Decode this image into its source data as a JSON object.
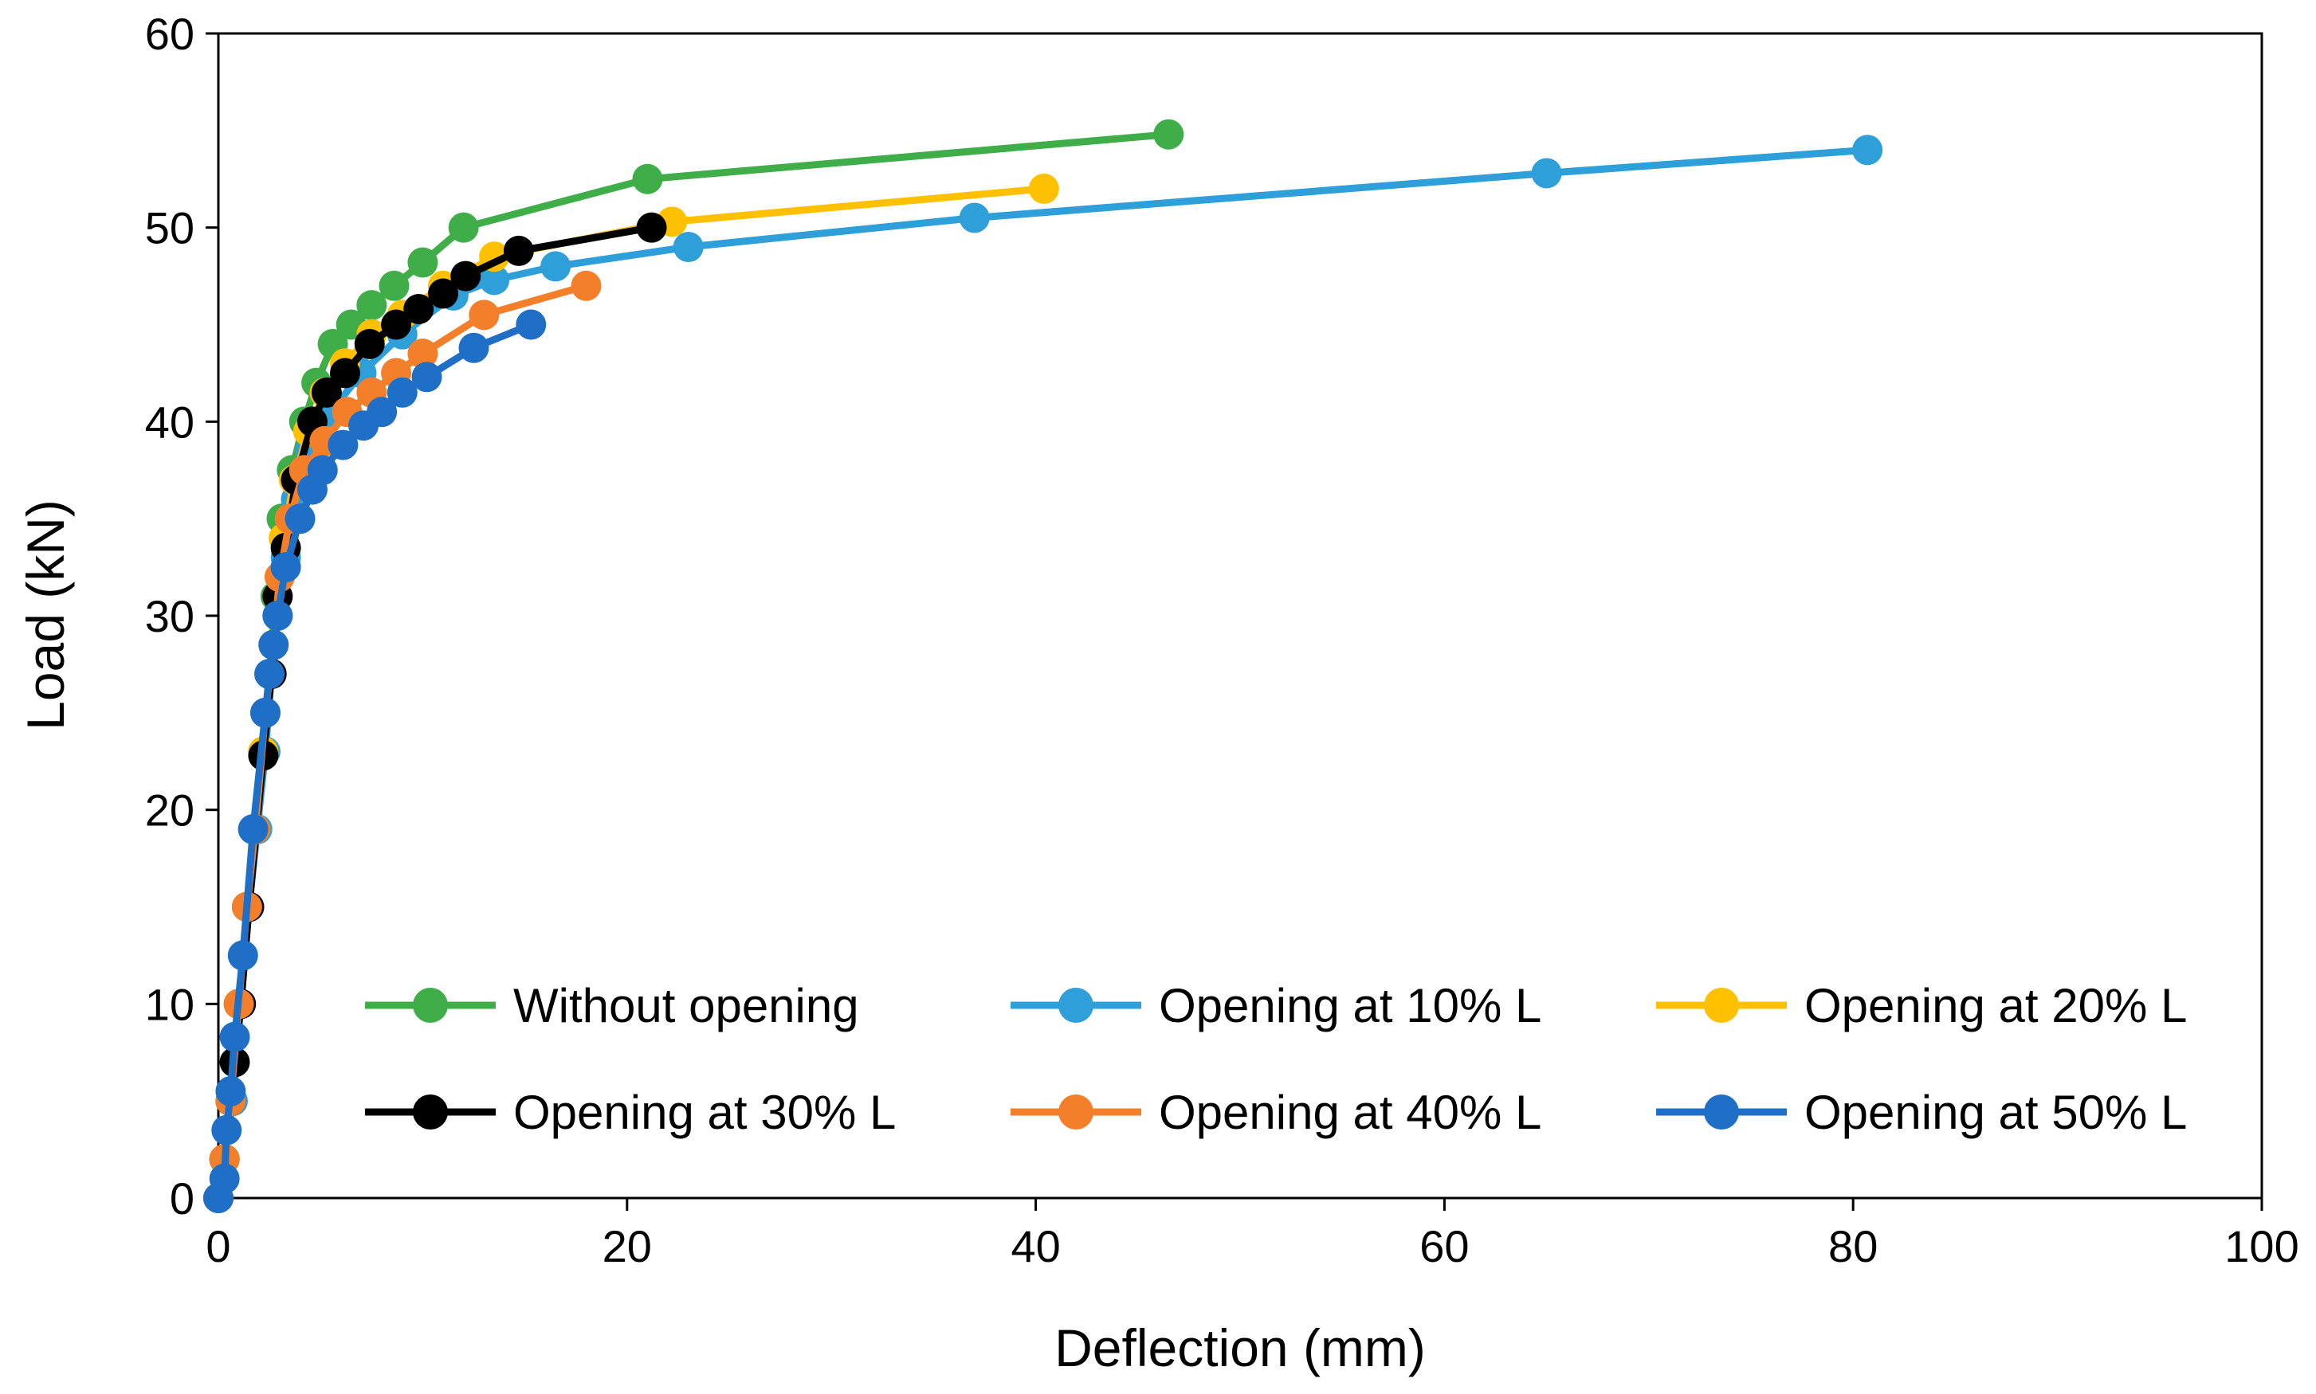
{
  "chart_data": {
    "type": "line",
    "title": "",
    "xlabel": "Deflection (mm)",
    "ylabel": "Load (kN)",
    "xlim": [
      0,
      100
    ],
    "ylim": [
      0,
      60
    ],
    "xticks": [
      0,
      20,
      40,
      60,
      80,
      100
    ],
    "yticks": [
      0,
      10,
      20,
      30,
      40,
      50,
      60
    ],
    "xtick_labels": [
      "0",
      "20",
      "40",
      "60",
      "80",
      "100"
    ],
    "ytick_labels": [
      "0",
      "10",
      "20",
      "30",
      "40",
      "50",
      "60"
    ],
    "grid": false,
    "legend_position": "bottom-right, 3 columns x 2 rows",
    "series": [
      {
        "name": "Without opening",
        "color": "#3fae49",
        "points": [
          [
            0,
            0
          ],
          [
            0.3,
            2
          ],
          [
            0.6,
            5
          ],
          [
            1.0,
            10
          ],
          [
            1.4,
            15
          ],
          [
            1.8,
            19
          ],
          [
            2.2,
            23
          ],
          [
            2.5,
            27
          ],
          [
            2.8,
            31
          ],
          [
            3.1,
            35
          ],
          [
            3.6,
            37.5
          ],
          [
            4.2,
            40
          ],
          [
            4.8,
            42
          ],
          [
            5.6,
            44
          ],
          [
            6.5,
            45
          ],
          [
            7.5,
            46
          ],
          [
            8.6,
            47
          ],
          [
            10.0,
            48.2
          ],
          [
            12.0,
            50
          ],
          [
            21.0,
            52.5
          ],
          [
            46.5,
            54.8
          ]
        ]
      },
      {
        "name": "Opening at 10% L",
        "color": "#2e9fd9",
        "points": [
          [
            0,
            0
          ],
          [
            0.3,
            2
          ],
          [
            0.7,
            5
          ],
          [
            1.1,
            10
          ],
          [
            1.5,
            15
          ],
          [
            1.9,
            19
          ],
          [
            2.3,
            23
          ],
          [
            2.6,
            27
          ],
          [
            2.9,
            30
          ],
          [
            3.3,
            33
          ],
          [
            3.8,
            36
          ],
          [
            4.5,
            38.5
          ],
          [
            5.5,
            40.5
          ],
          [
            7.0,
            42.5
          ],
          [
            9.0,
            44.5
          ],
          [
            11.5,
            46.5
          ],
          [
            13.5,
            47.3
          ],
          [
            16.5,
            48
          ],
          [
            23.0,
            49
          ],
          [
            37.0,
            50.5
          ],
          [
            65.0,
            52.8
          ],
          [
            80.7,
            54
          ]
        ]
      },
      {
        "name": "Opening at 20% L",
        "color": "#ffc000",
        "points": [
          [
            0,
            0
          ],
          [
            0.3,
            2
          ],
          [
            0.6,
            5
          ],
          [
            1.0,
            10
          ],
          [
            1.4,
            15
          ],
          [
            1.8,
            19
          ],
          [
            2.2,
            23
          ],
          [
            2.6,
            27
          ],
          [
            2.9,
            31
          ],
          [
            3.2,
            34
          ],
          [
            3.7,
            37
          ],
          [
            4.4,
            39.5
          ],
          [
            5.2,
            41.5
          ],
          [
            6.2,
            43
          ],
          [
            7.5,
            44.5
          ],
          [
            9.0,
            45.5
          ],
          [
            11.0,
            47
          ],
          [
            13.5,
            48.5
          ],
          [
            22.2,
            50.3
          ],
          [
            40.4,
            52
          ]
        ]
      },
      {
        "name": "Opening at 30% L",
        "color": "#000000",
        "points": [
          [
            0,
            0
          ],
          [
            0.3,
            2
          ],
          [
            0.6,
            5
          ],
          [
            0.8,
            7
          ],
          [
            1.1,
            10
          ],
          [
            1.5,
            15
          ],
          [
            2.2,
            22.8
          ],
          [
            2.6,
            27
          ],
          [
            2.9,
            31
          ],
          [
            3.3,
            33.5
          ],
          [
            3.8,
            37
          ],
          [
            4.6,
            40
          ],
          [
            5.3,
            41.5
          ],
          [
            6.2,
            42.5
          ],
          [
            7.4,
            44
          ],
          [
            8.7,
            45
          ],
          [
            9.8,
            45.8
          ],
          [
            11.0,
            46.6
          ],
          [
            12.1,
            47.5
          ],
          [
            14.7,
            48.8
          ],
          [
            21.2,
            50
          ]
        ]
      },
      {
        "name": "Opening at 40% L",
        "color": "#f47f2b",
        "points": [
          [
            0,
            0
          ],
          [
            0.3,
            2
          ],
          [
            0.6,
            5
          ],
          [
            1.0,
            10
          ],
          [
            1.4,
            15
          ],
          [
            1.8,
            19
          ],
          [
            2.3,
            25
          ],
          [
            2.7,
            28.5
          ],
          [
            3.0,
            32
          ],
          [
            3.5,
            35
          ],
          [
            4.2,
            37.5
          ],
          [
            5.2,
            39
          ],
          [
            6.3,
            40.5
          ],
          [
            7.5,
            41.5
          ],
          [
            8.7,
            42.5
          ],
          [
            10.0,
            43.5
          ],
          [
            13.0,
            45.5
          ],
          [
            18.0,
            47
          ]
        ]
      },
      {
        "name": "Opening at 50% L",
        "color": "#1f6fc6",
        "points": [
          [
            0,
            0
          ],
          [
            0.3,
            1
          ],
          [
            0.4,
            3.5
          ],
          [
            0.6,
            5.5
          ],
          [
            0.8,
            8.3
          ],
          [
            1.2,
            12.5
          ],
          [
            1.7,
            19
          ],
          [
            2.3,
            25
          ],
          [
            2.5,
            27
          ],
          [
            2.7,
            28.5
          ],
          [
            2.9,
            30
          ],
          [
            3.3,
            32.5
          ],
          [
            4.0,
            35
          ],
          [
            4.6,
            36.5
          ],
          [
            5.1,
            37.5
          ],
          [
            6.1,
            38.8
          ],
          [
            7.1,
            39.8
          ],
          [
            8.0,
            40.5
          ],
          [
            9.0,
            41.5
          ],
          [
            10.2,
            42.3
          ],
          [
            12.5,
            43.8
          ],
          [
            15.3,
            45
          ]
        ]
      }
    ]
  }
}
